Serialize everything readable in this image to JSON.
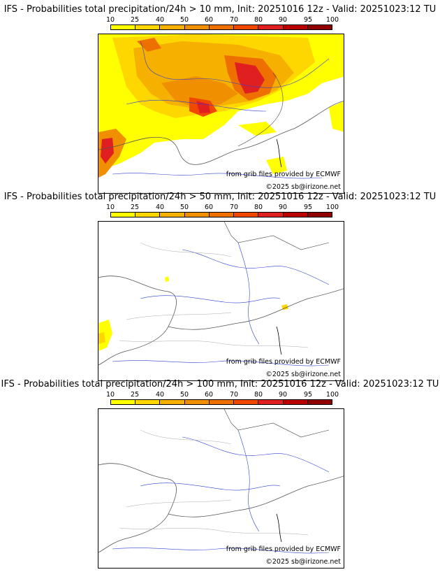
{
  "legend": {
    "ticks": [
      "10",
      "25",
      "40",
      "50",
      "60",
      "70",
      "80",
      "90",
      "95",
      "100"
    ],
    "colors": [
      "#ffff00",
      "#ffd700",
      "#f5b000",
      "#f09000",
      "#ee7000",
      "#f04800",
      "#e02020",
      "#bb0000",
      "#900000",
      "#600000"
    ]
  },
  "panels": [
    {
      "title": "IFS - Probabilities total precipitation/24h > 10 mm, Init: 20251016 12z - Valid: 20251023:12 TU",
      "threshold_mm": 10
    },
    {
      "title": "IFS - Probabilities total precipitation/24h > 50 mm, Init: 20251016 12z - Valid: 20251023:12 TU",
      "threshold_mm": 50
    },
    {
      "title": "IFS - Probabilities total precipitation/24h > 100 mm, Init: 20251016 12z - Valid: 20251023:12 TU",
      "threshold_mm": 100
    }
  ],
  "credit_source": "from grib files provided by ECMWF",
  "credit_copyright": "©2025 sb@irizone.net"
}
